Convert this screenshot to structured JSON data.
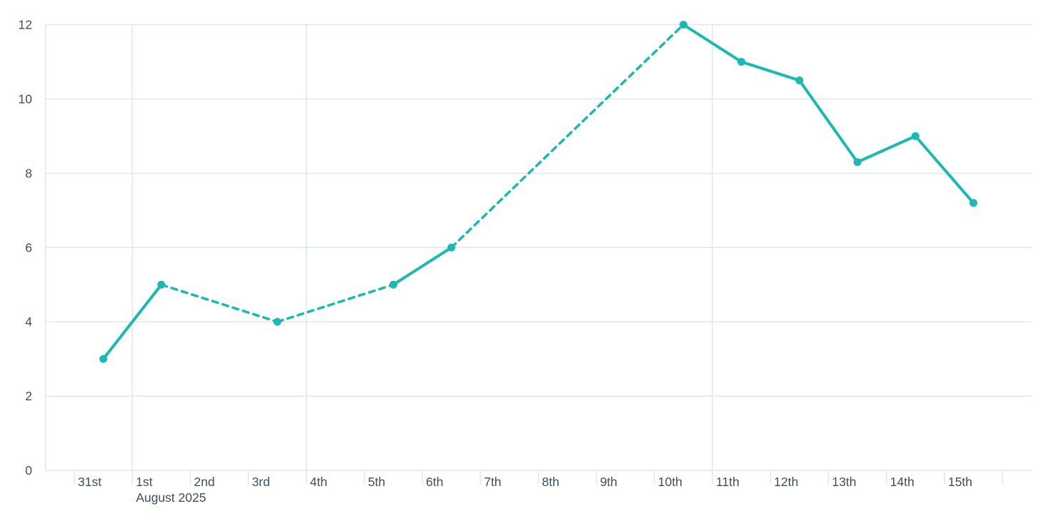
{
  "chart_data": {
    "type": "line",
    "title": "",
    "xlabel": "",
    "ylabel": "",
    "x_categories": [
      "31st",
      "1st",
      "2nd",
      "3rd",
      "4th",
      "5th",
      "6th",
      "7th",
      "8th",
      "9th",
      "10th",
      "11th",
      "12th",
      "13th",
      "14th",
      "15th"
    ],
    "x_secondary_label": "August 2025",
    "x_secondary_label_index": 1,
    "points": [
      {
        "x": "31st",
        "index": 0,
        "value": 3
      },
      {
        "x": "1st",
        "index": 1,
        "value": 5
      },
      {
        "x": "3rd",
        "index": 3,
        "value": 4
      },
      {
        "x": "5th",
        "index": 5,
        "value": 5
      },
      {
        "x": "6th",
        "index": 6,
        "value": 6
      },
      {
        "x": "10th",
        "index": 10,
        "value": 12
      },
      {
        "x": "11th",
        "index": 11,
        "value": 11
      },
      {
        "x": "12th",
        "index": 12,
        "value": 10.5
      },
      {
        "x": "13th",
        "index": 13,
        "value": 8.3
      },
      {
        "x": "14th",
        "index": 14,
        "value": 9
      },
      {
        "x": "15th",
        "index": 15,
        "value": 7.2
      }
    ],
    "solid_segments": [
      [
        0,
        1
      ],
      [
        5,
        6
      ],
      [
        10,
        11
      ],
      [
        11,
        12
      ],
      [
        12,
        13
      ],
      [
        13,
        14
      ],
      [
        14,
        15
      ]
    ],
    "dashed_segments": [
      [
        1,
        3
      ],
      [
        3,
        5
      ],
      [
        6,
        10
      ]
    ],
    "y_ticks": [
      0,
      2,
      4,
      6,
      8,
      10,
      12
    ],
    "ylim": [
      0,
      12
    ],
    "week_gridline_indices": [
      1,
      4,
      11
    ],
    "grid": true,
    "legend": false,
    "colors": {
      "line": "#1ab9b1",
      "grid": "#e2e6ef",
      "text": "#3f4e63",
      "background": "#ffffff"
    }
  }
}
